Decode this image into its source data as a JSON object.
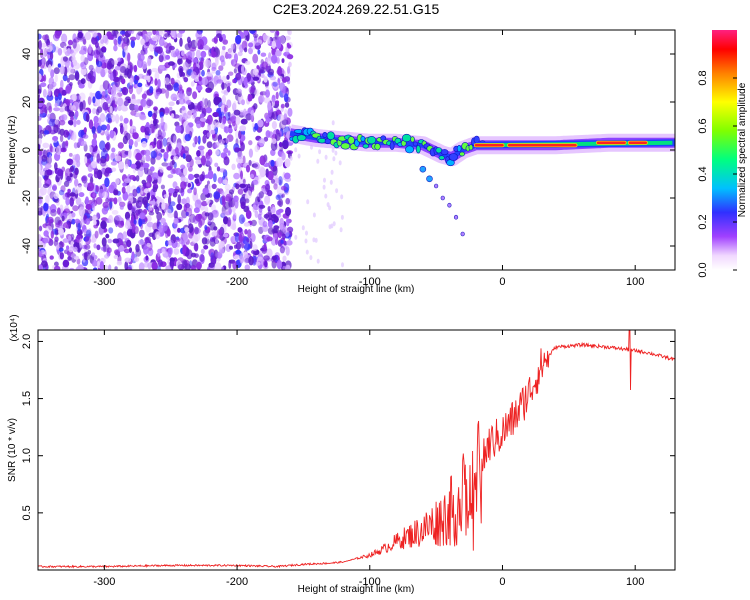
{
  "title": "C2E3.2024.269.22.51.G15",
  "colors": {
    "snr_line": "#ee2222",
    "speckle": "#8a2be2",
    "ridge_core": "#ff2020"
  },
  "colorbar": {
    "label": "Normalized spectral amplitude",
    "ticks": [
      "0.0",
      "0.2",
      "0.4",
      "0.6",
      "0.8"
    ],
    "tick_values": [
      0.0,
      0.2,
      0.4,
      0.6,
      0.8
    ],
    "range": [
      0,
      1
    ]
  },
  "chart_data": [
    {
      "type": "heatmap",
      "title": "C2E3.2024.269.22.51.G15",
      "xlabel": "Height of straight line (km)",
      "ylabel": "Frequency (Hz)",
      "xlim": [
        -350,
        130
      ],
      "ylim": [
        -50,
        50
      ],
      "xticks": [
        -300,
        -200,
        -100,
        0,
        100
      ],
      "xtick_labels": [
        "-300",
        "-200",
        "-100",
        "0",
        "100"
      ],
      "yticks": [
        -40,
        -20,
        0,
        20,
        40
      ],
      "ytick_labels": [
        "-40",
        "-20",
        "0",
        "20",
        "40"
      ],
      "noise_region_x": [
        -350,
        -160
      ],
      "ridge": {
        "x": [
          -160,
          -140,
          -120,
          -100,
          -80,
          -60,
          -45,
          -38,
          -30,
          -20,
          0,
          40,
          80,
          100,
          130
        ],
        "y": [
          7,
          5,
          4,
          3,
          3,
          2,
          -2,
          -3,
          0,
          2,
          2,
          2,
          3,
          3,
          3
        ]
      },
      "branch": {
        "x": [
          -60,
          -55,
          -50,
          -45,
          -40,
          -35,
          -30
        ],
        "y": [
          -8,
          -12,
          -15,
          -20,
          -23,
          -28,
          -35
        ]
      }
    },
    {
      "type": "line",
      "xlabel": "Height of straight line (km)",
      "ylabel": "SNR (10 * v/v)",
      "y_multiplier": "(x10⁴)",
      "xlim": [
        -350,
        130
      ],
      "ylim": [
        0,
        2.1
      ],
      "xticks": [
        -300,
        -200,
        -100,
        0,
        100
      ],
      "xtick_labels": [
        "-300",
        "-200",
        "-100",
        "0",
        "100"
      ],
      "yticks": [
        0.5,
        1.0,
        1.5,
        2.0
      ],
      "ytick_labels": [
        "0.5",
        "1.0",
        "1.5",
        "2.0"
      ],
      "series": [
        {
          "x": [
            -350,
            -300,
            -250,
            -200,
            -170,
            -150,
            -130,
            -120,
            -110,
            -100,
            -90,
            -80,
            -70,
            -60,
            -50,
            -40,
            -30,
            -25,
            -20,
            -15,
            -10,
            -5,
            0,
            10,
            20,
            30,
            40,
            60,
            80,
            100,
            110,
            120,
            130
          ],
          "y": [
            0.03,
            0.03,
            0.04,
            0.04,
            0.03,
            0.05,
            0.06,
            0.07,
            0.1,
            0.13,
            0.18,
            0.25,
            0.3,
            0.35,
            0.42,
            0.5,
            0.6,
            0.62,
            0.65,
            0.95,
            1.1,
            1.15,
            1.2,
            1.35,
            1.55,
            1.8,
            1.95,
            1.97,
            1.95,
            1.92,
            1.9,
            1.87,
            1.84
          ]
        }
      ]
    }
  ]
}
